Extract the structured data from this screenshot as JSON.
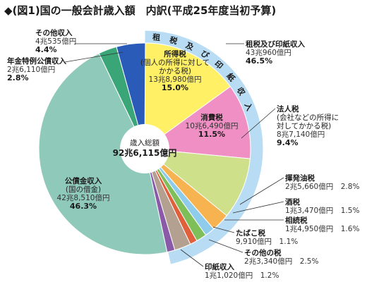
{
  "title": "◆(図1)国の一般会計歳入額　内訳(平成25年度当初予算)",
  "center": {
    "line1": "歳入総額",
    "line2": "92兆6,115億円"
  },
  "colors": {
    "tax_ring": "#b8dcf4",
    "income_tax": "#fff066",
    "consumption_tax": "#ef8fc3",
    "corporate_tax": "#cfe08a",
    "gasoline_tax": "#f6b350",
    "liquor_tax": "#8fcbea",
    "inheritance_tax": "#7fbf5a",
    "tobacco_tax": "#e0603c",
    "other_tax": "#b3a090",
    "stamp_revenue": "#8a5aa8",
    "public_bonds": "#8fc9b9",
    "pension_bonds": "#3aa577",
    "other_revenue": "#2a5bb8"
  },
  "chart_data": {
    "type": "pie",
    "title": "◆(図1)国の一般会計歳入額　内訳(平成25年度当初予算)",
    "total": {
      "label": "歳入総額",
      "value": "92兆6,115億円"
    },
    "outer_ring": {
      "label": "租税及び印紙収入",
      "amount": "43兆960億円",
      "percent": 46.5,
      "ring_text": "租税及び印紙収入"
    },
    "slices": [
      {
        "key": "income_tax",
        "name": "所得税",
        "note": "(個人の所得に対して\nかかる税)",
        "amount": "13兆8,980億円",
        "percent": 15.0
      },
      {
        "key": "consumption_tax",
        "name": "消費税",
        "note": "",
        "amount": "10兆6,490億円",
        "percent": 11.5
      },
      {
        "key": "corporate_tax",
        "name": "法人税",
        "note": "(会社などの所得に\n対してかかる税)",
        "amount": "8兆7,140億円",
        "percent": 9.4
      },
      {
        "key": "gasoline_tax",
        "name": "揮発油税",
        "note": "",
        "amount": "2兆5,660億円",
        "percent": 2.8
      },
      {
        "key": "liquor_tax",
        "name": "酒税",
        "note": "",
        "amount": "1兆3,470億円",
        "percent": 1.5
      },
      {
        "key": "inheritance_tax",
        "name": "相続税",
        "note": "",
        "amount": "1兆4,950億円",
        "percent": 1.6
      },
      {
        "key": "tobacco_tax",
        "name": "たばこ税",
        "note": "",
        "amount": "9,910億円",
        "percent": 1.1
      },
      {
        "key": "other_tax",
        "name": "その他の税",
        "note": "",
        "amount": "2兆3,340億円",
        "percent": 2.5
      },
      {
        "key": "stamp_revenue",
        "name": "印紙収入",
        "note": "",
        "amount": "1兆1,020億円",
        "percent": 1.2
      },
      {
        "key": "public_bonds",
        "name": "公債金収入",
        "note": "(国の借金)",
        "amount": "42兆8,510億円",
        "percent": 46.3
      },
      {
        "key": "pension_bonds",
        "name": "年金特例公債収入",
        "note": "",
        "amount": "2兆6,110億円",
        "percent": 2.8
      },
      {
        "key": "other_revenue",
        "name": "その他収入",
        "note": "",
        "amount": "4兆535億円",
        "percent": 4.4
      }
    ]
  }
}
